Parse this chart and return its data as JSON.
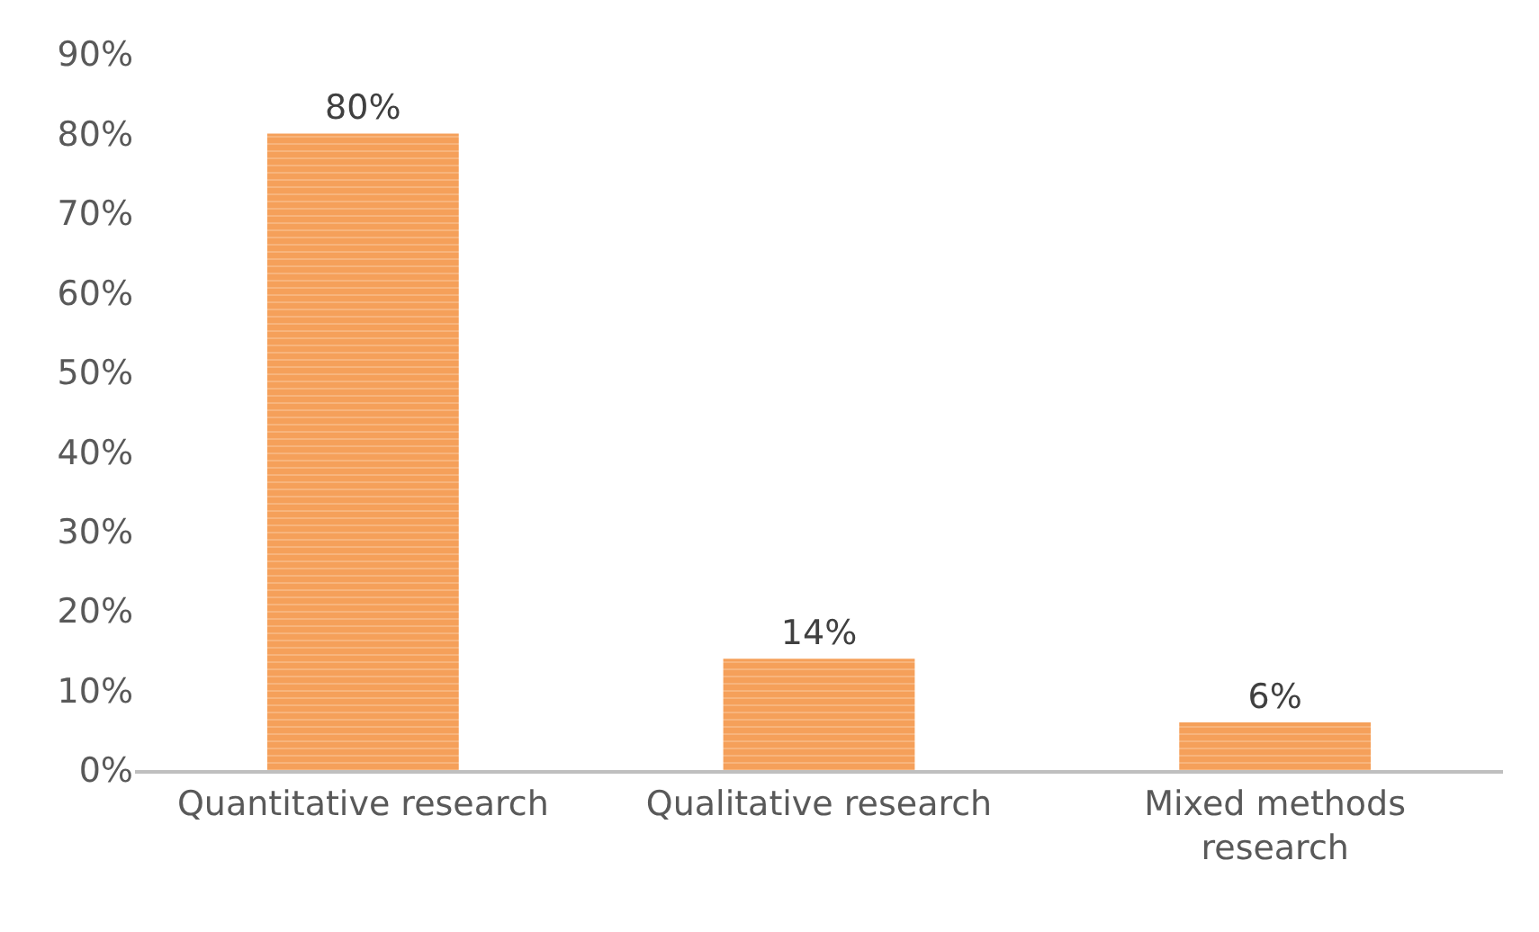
{
  "chart_data": {
    "type": "bar",
    "categories": [
      "Quantitative research",
      "Qualitative research",
      "Mixed methods research"
    ],
    "values": [
      80,
      14,
      6
    ],
    "value_labels": [
      "80%",
      "14%",
      "6%"
    ],
    "color": "#f5a05a",
    "ylim": [
      0,
      90
    ],
    "yticks": [
      {
        "value": 0,
        "label": "0%"
      },
      {
        "value": 10,
        "label": "10%"
      },
      {
        "value": 20,
        "label": "20%"
      },
      {
        "value": 30,
        "label": "30%"
      },
      {
        "value": 40,
        "label": "40%"
      },
      {
        "value": 50,
        "label": "50%"
      },
      {
        "value": 60,
        "label": "60%"
      },
      {
        "value": 70,
        "label": "70%"
      },
      {
        "value": 80,
        "label": "80%"
      },
      {
        "value": 90,
        "label": "90%"
      }
    ],
    "legend": false
  }
}
